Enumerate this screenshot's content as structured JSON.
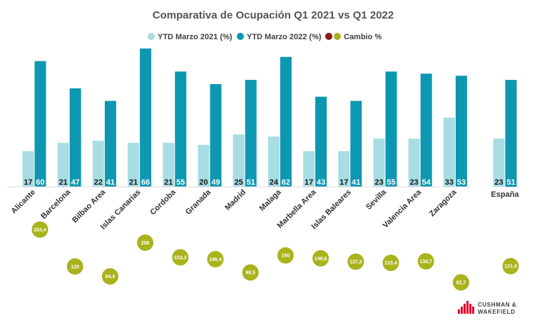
{
  "chart_data": {
    "type": "bar",
    "title": "Comparativa de Ocupación Q1 2021 vs Q1 2022",
    "categories": [
      "Alicante",
      "Barcelona",
      "Bilbao Area",
      "Islas Canarias",
      "Cordoba",
      "Granada",
      "Madrid",
      "Malaga",
      "Marbella Area",
      "Islas Baleares",
      "Sevilla",
      "Valencia Area",
      "Zaragoza"
    ],
    "series": [
      {
        "name": "YTD Marzo 2021 (%)",
        "color": "#a8dde3",
        "values": [
          17,
          21,
          22,
          21,
          21,
          20,
          25,
          24,
          17,
          17,
          23,
          23,
          33
        ]
      },
      {
        "name": "YTD Marzo 2022 (%)",
        "color": "#0e97b1",
        "values": [
          60,
          47,
          41,
          66,
          55,
          49,
          51,
          62,
          43,
          41,
          55,
          54,
          53
        ]
      }
    ],
    "change_series": {
      "name": "Cambio %",
      "legend_colors": [
        "#8b1a1a",
        "#a9b31c"
      ],
      "color": "#a9b31c",
      "values": [
        253.4,
        120,
        84.4,
        206,
        153.3,
        146.4,
        98.5,
        160,
        149.6,
        137.3,
        133.4,
        138.7,
        62.7
      ],
      "labels": [
        "253,4",
        "120",
        "84,4",
        "206",
        "153,3",
        "146,4",
        "98,5",
        "160",
        "149,6",
        "137,3",
        "133,4",
        "138,7",
        "62,7"
      ]
    },
    "total": {
      "category": "España",
      "values": [
        23,
        51
      ],
      "change_value": 121.4,
      "change_label": "121,4"
    },
    "ylim": [
      0,
      66
    ],
    "xlabel": "",
    "ylabel": "",
    "grid": false,
    "legend_position": "top-center"
  },
  "brand": {
    "line1": "CUSHMAN &",
    "line2": "WAKEFIELD",
    "color": "#e4002b"
  }
}
